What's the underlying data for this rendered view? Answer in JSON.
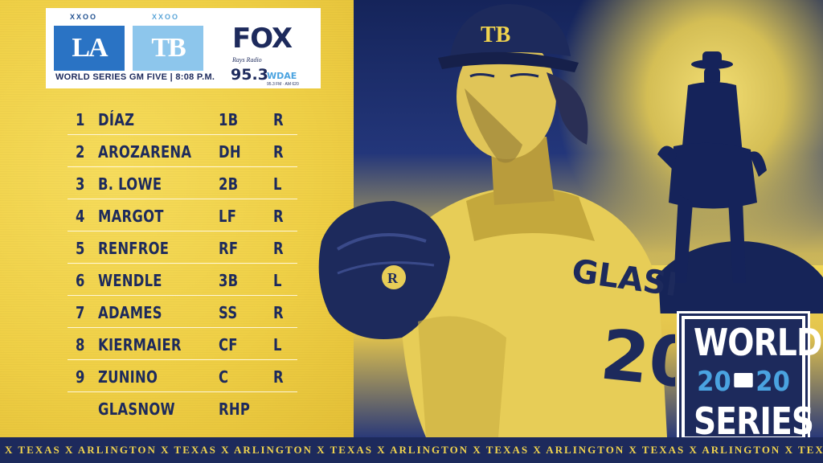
{
  "header": {
    "team_la_logo": "LA",
    "team_la_record": "XXOO",
    "team_tb_logo": "TB",
    "team_tb_record": "XXOO",
    "game_info": "WORLD SERIES GM FIVE | 8:08 P.M.",
    "broadcaster": "FOX",
    "radio_station_name": "Rays Radio",
    "radio_frequency": "95.3",
    "radio_call_sign": "WDAE",
    "radio_sub": "95.3 FM · AM 620"
  },
  "lineup": [
    {
      "num": "1",
      "name": "DÍAZ",
      "pos": "1B",
      "hand": "R"
    },
    {
      "num": "2",
      "name": "AROZARENA",
      "pos": "DH",
      "hand": "R"
    },
    {
      "num": "3",
      "name": "B. LOWE",
      "pos": "2B",
      "hand": "L"
    },
    {
      "num": "4",
      "name": "MARGOT",
      "pos": "LF",
      "hand": "R"
    },
    {
      "num": "5",
      "name": "RENFROE",
      "pos": "RF",
      "hand": "R"
    },
    {
      "num": "6",
      "name": "WENDLE",
      "pos": "3B",
      "hand": "L"
    },
    {
      "num": "7",
      "name": "ADAMES",
      "pos": "SS",
      "hand": "R"
    },
    {
      "num": "8",
      "name": "KIERMAIER",
      "pos": "CF",
      "hand": "L"
    },
    {
      "num": "9",
      "name": "ZUNINO",
      "pos": "C",
      "hand": "R"
    },
    {
      "num": "",
      "name": "GLASNOW",
      "pos": "RHP",
      "hand": ""
    }
  ],
  "player": {
    "jersey_name": "GLASNOW",
    "jersey_number": "20",
    "cap_logo": "TB"
  },
  "ws_logo": {
    "top": "WORLD",
    "year_left": "20",
    "year_right": "20",
    "bottom": "SERIES"
  },
  "ticker": {
    "text": "X TEXAS X ARLINGTON X TEXAS X ARLINGTON X TEXAS X ARLINGTON X TEXAS X ARLINGTON X TEXAS X ARLINGTON X TEXAS X ARLINGTON X TEXAS X"
  },
  "colors": {
    "navy": "#1d2a5c",
    "yellow": "#f1d44e",
    "dodgers_blue": "#2a73c4",
    "rays_light_blue": "#8dc6ec"
  }
}
